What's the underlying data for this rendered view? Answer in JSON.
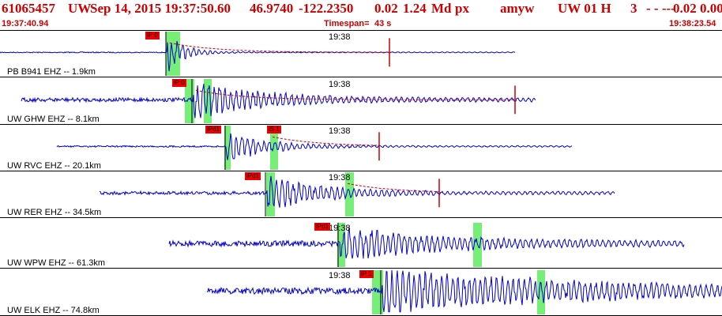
{
  "header": {
    "event_id": "61065457",
    "network_region": "UW",
    "datetime": "Sep 14, 2015 19:37:50.60",
    "latitude": "46.9740",
    "longitude": "-122.2350",
    "depth": "0.02",
    "magnitude": "1.24",
    "magnitude_type": "Md",
    "event_type": "px",
    "origin_source": "amyw",
    "solution": "UW 01 H",
    "quality": "3",
    "flags": "- - ---",
    "tail": "0.02 0.00"
  },
  "timebar": {
    "start": "19:37:40.94",
    "timespan_label": "Timespan=",
    "timespan_value": "43 s",
    "end": "19:38:23.54"
  },
  "colors": {
    "header_text": "#cc0000",
    "trace": "#0000cc",
    "coda_fit": "#cc0000",
    "pick_tag": "#ee0000",
    "pick_window": "#77ee77",
    "divider": "#000000"
  },
  "panels": [
    {
      "station_label": "PB B941 EHZ -- 1.9km",
      "time_tick": "19:38",
      "picks": [
        "iP:0"
      ]
    },
    {
      "station_label": "UW GHW EHZ -- 8.1km",
      "time_tick": "19:38",
      "picks": [
        "iP:0"
      ]
    },
    {
      "station_label": "UW RVC EHZ -- 20.1km",
      "time_tick": "19:38",
      "picks": [
        "iPd1",
        "iS 1"
      ]
    },
    {
      "station_label": "UW RER EHZ -- 34.5km",
      "time_tick": "19:38",
      "picks": [
        "iPd1"
      ]
    },
    {
      "station_label": "UW WPW EHZ -- 61.3km",
      "time_tick": "19:38",
      "picks": [
        "iPd1"
      ]
    },
    {
      "station_label": "UW ELK EHZ -- 74.8km",
      "time_tick": "19:38",
      "picks": [
        "iP 1"
      ]
    }
  ]
}
